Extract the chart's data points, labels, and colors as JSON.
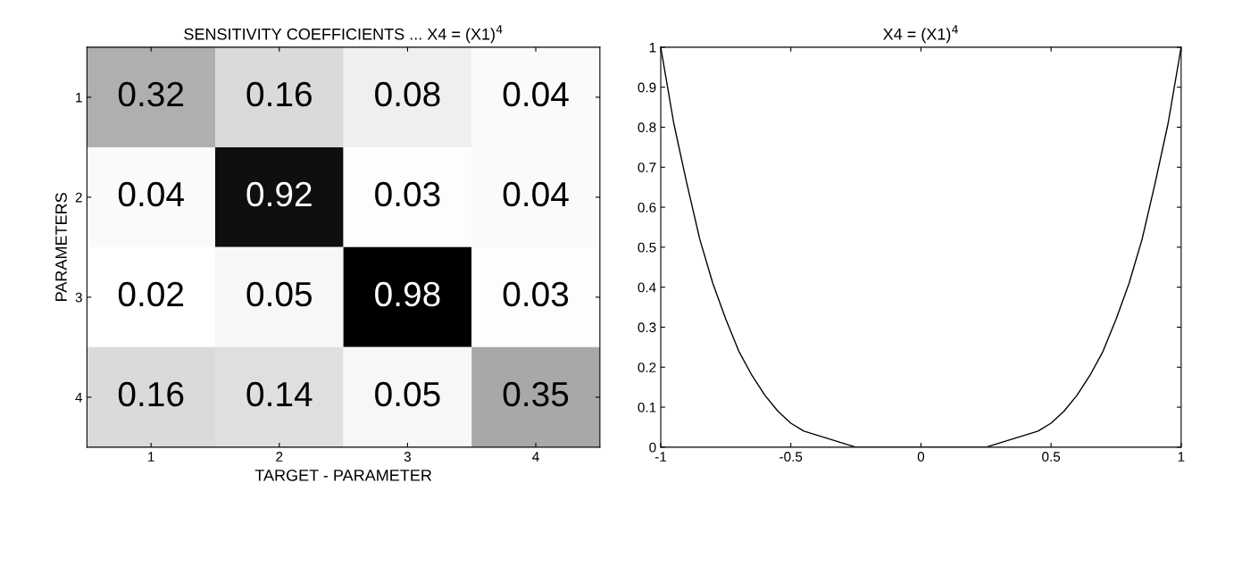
{
  "chart_data": [
    {
      "type": "heatmap",
      "title": "SENSITIVITY COEFFICIENTS ... X4 = (X1)$^{4}$",
      "xlabel": "TARGET - PARAMETER",
      "ylabel": "PARAMETERS",
      "categories": [
        "1",
        "2",
        "3",
        "4"
      ],
      "y_categories": [
        "1",
        "2",
        "3",
        "4"
      ],
      "cells": [
        [
          0.32,
          0.16,
          0.08,
          0.04
        ],
        [
          0.04,
          0.92,
          0.03,
          0.04
        ],
        [
          0.02,
          0.05,
          0.98,
          0.03
        ],
        [
          0.16,
          0.14,
          0.05,
          0.35
        ]
      ],
      "data_labels": true,
      "grid": false
    },
    {
      "type": "line",
      "title": "X4 = (X1)$^{4}$",
      "x": [
        -1,
        -0.95,
        -0.9,
        -0.85,
        -0.8,
        -0.75,
        -0.7,
        -0.65,
        -0.6,
        -0.55,
        -0.5,
        -0.45,
        -0.4,
        -0.35,
        -0.3,
        -0.25,
        -0.2,
        -0.1,
        0,
        0.1,
        0.2,
        0.25,
        0.3,
        0.35,
        0.4,
        0.45,
        0.5,
        0.55,
        0.6,
        0.65,
        0.7,
        0.75,
        0.8,
        0.85,
        0.9,
        0.95,
        1
      ],
      "series": [
        {
          "color": "#000000",
          "values": [
            1,
            0.81,
            0.66,
            0.52,
            0.41,
            0.32,
            0.24,
            0.18,
            0.13,
            0.09,
            0.06,
            0.04,
            0.03,
            0.02,
            0.01,
            0,
            0,
            0,
            0,
            0,
            0,
            0,
            0.01,
            0.02,
            0.03,
            0.04,
            0.06,
            0.09,
            0.13,
            0.18,
            0.24,
            0.32,
            0.41,
            0.52,
            0.66,
            0.81,
            1
          ]
        }
      ],
      "xlim": [
        -1,
        1
      ],
      "ylim": [
        0,
        1
      ],
      "xticks": [
        -1,
        -0.5,
        0,
        0.5,
        1
      ],
      "yticks": [
        0,
        0.1,
        0.2,
        0.3,
        0.4,
        0.5,
        0.6,
        0.7,
        0.8,
        0.9,
        1
      ],
      "grid": false,
      "legend": false,
      "marker": "none",
      "line_style": "solid"
    }
  ]
}
